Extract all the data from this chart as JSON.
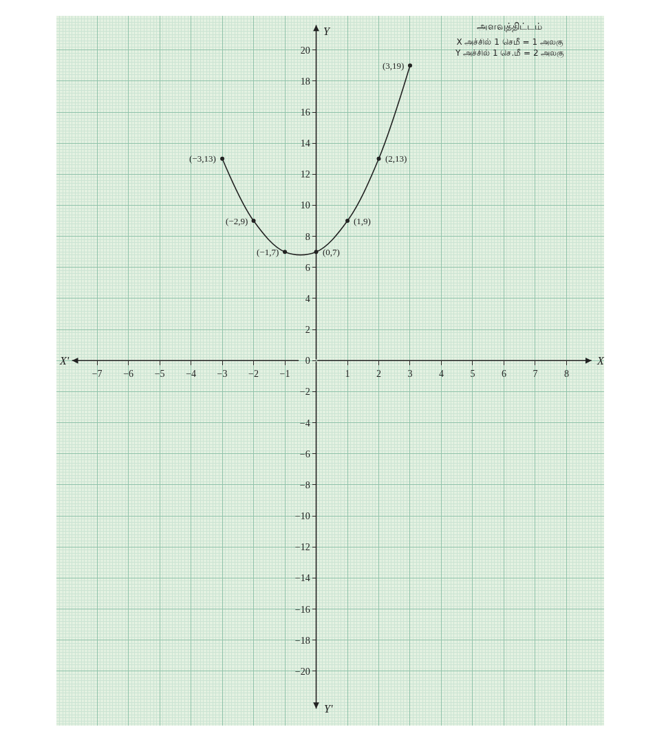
{
  "chart_data": {
    "type": "line",
    "title": "அளவுத்திட்டம்",
    "subtitle": "X அச்சில் 1 செமீ = 1 அலகு\nY அச்சில் 1 செ.மீ = 2 அலகு",
    "xlabel": "X",
    "ylabel": "Y",
    "x": [
      -3,
      -2,
      -1,
      0,
      1,
      2,
      3
    ],
    "series": [
      {
        "color": "#222222",
        "values": [
          13,
          9,
          7,
          7,
          9,
          13,
          19
        ]
      }
    ],
    "xlim": [
      -8.3,
      9.2
    ],
    "ylim": [
      -23.5,
      22.2
    ],
    "xticks": [
      -7,
      -6,
      -5,
      -4,
      -3,
      -2,
      -1,
      1,
      2,
      3,
      4,
      5,
      6,
      7,
      8
    ],
    "yticks": [
      -20,
      -18,
      -16,
      -14,
      -12,
      -10,
      -8,
      -6,
      -4,
      -2,
      0,
      2,
      4,
      6,
      8,
      10,
      12,
      14,
      16,
      18,
      20
    ],
    "annotations": [
      "X'",
      "Y'",
      {
        "text": "(−3,13)",
        "x": -3,
        "y": 13
      },
      {
        "text": "(−2,9)",
        "x": -2,
        "y": 9
      },
      {
        "text": "(−1,7)",
        "x": -1,
        "y": 7
      },
      {
        "text": "(0,7)",
        "x": 0,
        "y": 7
      },
      {
        "text": "(1,9)",
        "x": 1,
        "y": 9
      },
      {
        "text": "(2,13)",
        "x": 2,
        "y": 13
      },
      {
        "text": "(3,19)",
        "x": 3,
        "y": 19
      }
    ],
    "grid": true,
    "marker": "circle",
    "line_style": "solid"
  }
}
